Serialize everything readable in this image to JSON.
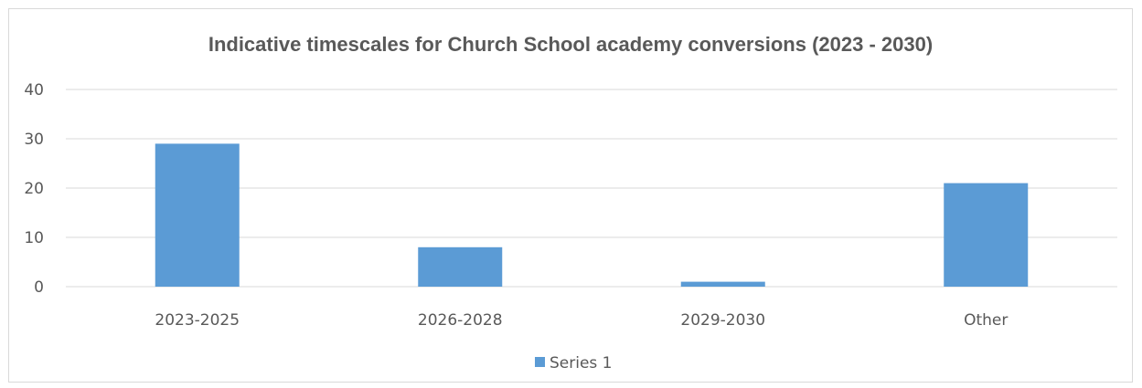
{
  "chart_data": {
    "type": "bar",
    "title": "Indicative timescales for Church School academy conversions (2023 - 2030)",
    "xlabel": "",
    "ylabel": "",
    "categories": [
      "2023-2025",
      "2026-2028",
      "2029-2030",
      "Other"
    ],
    "series": [
      {
        "name": "Series 1",
        "values": [
          29,
          8,
          1,
          21
        ],
        "color": "#5b9bd5"
      }
    ],
    "ylim": [
      0,
      40
    ],
    "yticks": [
      0,
      10,
      20,
      30,
      40
    ],
    "grid": true,
    "legend": "bottom-center"
  }
}
